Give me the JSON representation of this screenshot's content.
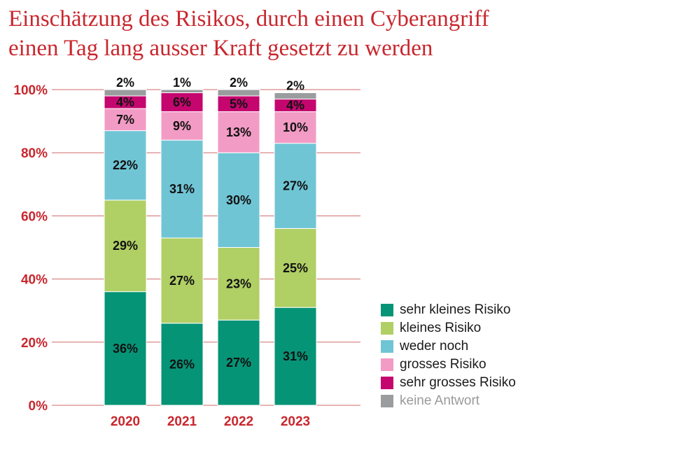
{
  "chart_data": {
    "type": "bar",
    "stacked": true,
    "title": "Einschätzung des Risikos, durch einen Cyberangriff\neinen Tag lang ausser Kraft gesetzt zu werden",
    "categories": [
      "2020",
      "2021",
      "2022",
      "2023"
    ],
    "ylim": [
      0,
      100
    ],
    "yticks": [
      "0%",
      "20%",
      "40%",
      "60%",
      "80%",
      "100%"
    ],
    "grid": true,
    "legend_position": "right-bottom",
    "series": [
      {
        "name": "sehr kleines Risiko",
        "color": "#069476",
        "values": [
          36,
          26,
          27,
          31
        ],
        "labels": [
          "36%",
          "26%",
          "27%",
          "31%"
        ]
      },
      {
        "name": "kleines Risiko",
        "color": "#b0cf64",
        "values": [
          29,
          27,
          23,
          25
        ],
        "labels": [
          "29%",
          "27%",
          "23%",
          "25%"
        ]
      },
      {
        "name": "weder noch",
        "color": "#70c5d5",
        "values": [
          22,
          31,
          30,
          27
        ],
        "labels": [
          "22%",
          "31%",
          "30%",
          "27%"
        ]
      },
      {
        "name": "grosses Risiko",
        "color": "#f29bc5",
        "values": [
          7,
          9,
          13,
          10
        ],
        "labels": [
          "7%",
          "9%",
          "13%",
          "10%"
        ]
      },
      {
        "name": "sehr grosses Risiko",
        "color": "#c5066f",
        "values": [
          4,
          6,
          5,
          4
        ],
        "labels": [
          "4%",
          "6%",
          "5%",
          "4%"
        ]
      },
      {
        "name": "keine Antwort",
        "color": "#9b9c9e",
        "values": [
          2,
          1,
          2,
          2
        ],
        "labels": [
          "2%",
          "1%",
          "2%",
          "2%"
        ]
      }
    ]
  }
}
